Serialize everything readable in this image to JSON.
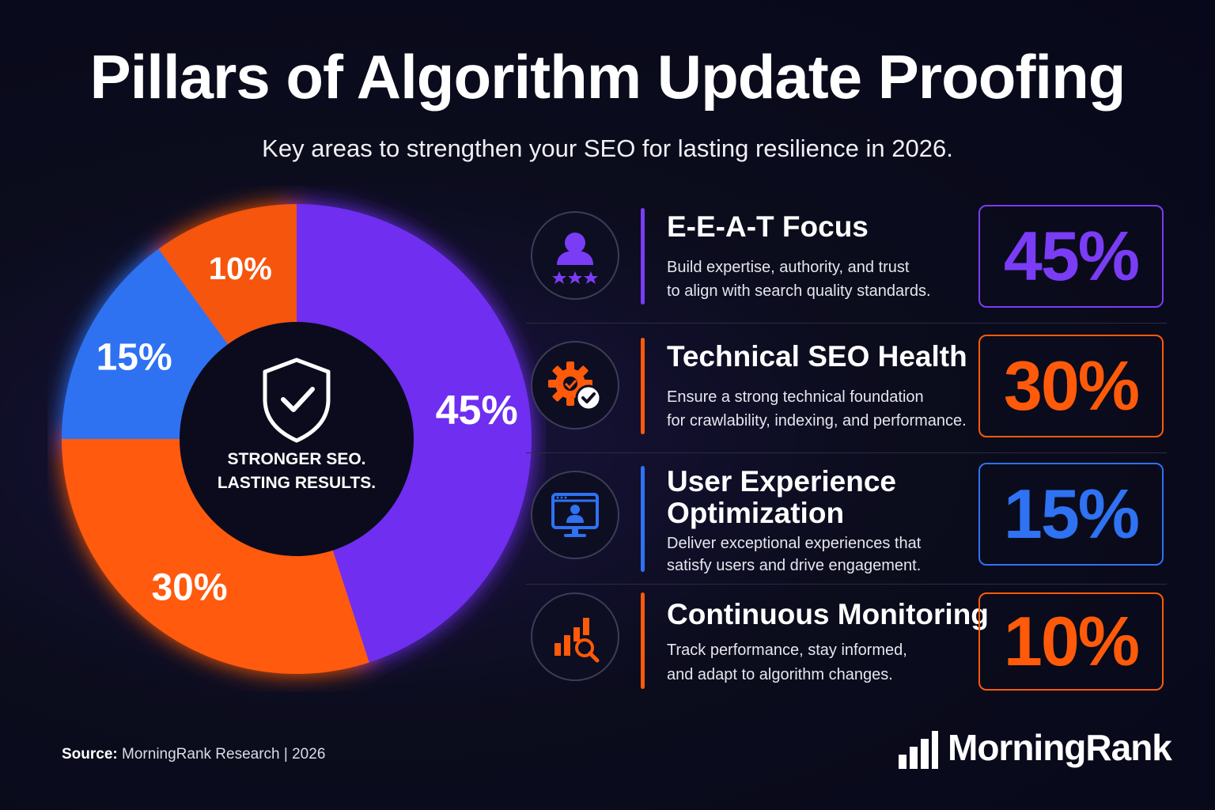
{
  "header": {
    "title": "Pillars of Algorithm Update Proofing",
    "subtitle": "Key areas to strengthen your SEO for lasting resilience in 2026."
  },
  "chart_data": {
    "type": "pie",
    "categories": [
      "E-E-A-T Focus",
      "Technical SEO Health",
      "User Experience Optimization",
      "Continuous Monitoring"
    ],
    "values": [
      45,
      30,
      15,
      10
    ],
    "labels": [
      "45%",
      "30%",
      "15%",
      "10%"
    ],
    "colors": [
      "#6f2ff0",
      "#ff5a0a",
      "#2f72f2",
      "#f55507"
    ],
    "center_text_line1": "STRONGER SEO.",
    "center_text_line2": "LASTING RESULTS."
  },
  "pillars": [
    {
      "title": "E-E-A-T Focus",
      "desc1": "Build expertise, authority, and trust",
      "desc2": "to align with search quality standards.",
      "pct": "45%",
      "color": "#7a3cf5",
      "icon": "user-rating-icon"
    },
    {
      "title": "Technical SEO Health",
      "desc1": "Ensure a strong technical foundation",
      "desc2": "for crawlability, indexing, and performance.",
      "pct": "30%",
      "color": "#ff5a0a",
      "icon": "gear-check-icon"
    },
    {
      "title1": "User Experience",
      "title2": "Optimization",
      "desc1": "Deliver exceptional experiences that",
      "desc2": "satisfy users and drive engagement.",
      "pct": "15%",
      "color": "#2f72f2",
      "icon": "monitor-user-icon"
    },
    {
      "title": "Continuous Monitoring",
      "desc1": "Track performance, stay informed,",
      "desc2": "and adapt to algorithm changes.",
      "pct": "10%",
      "color": "#ff5a0a",
      "icon": "chart-search-icon"
    }
  ],
  "footer": {
    "source_label": "Source:",
    "source_text": "MorningRank Research | 2026",
    "brand": "MorningRank"
  }
}
